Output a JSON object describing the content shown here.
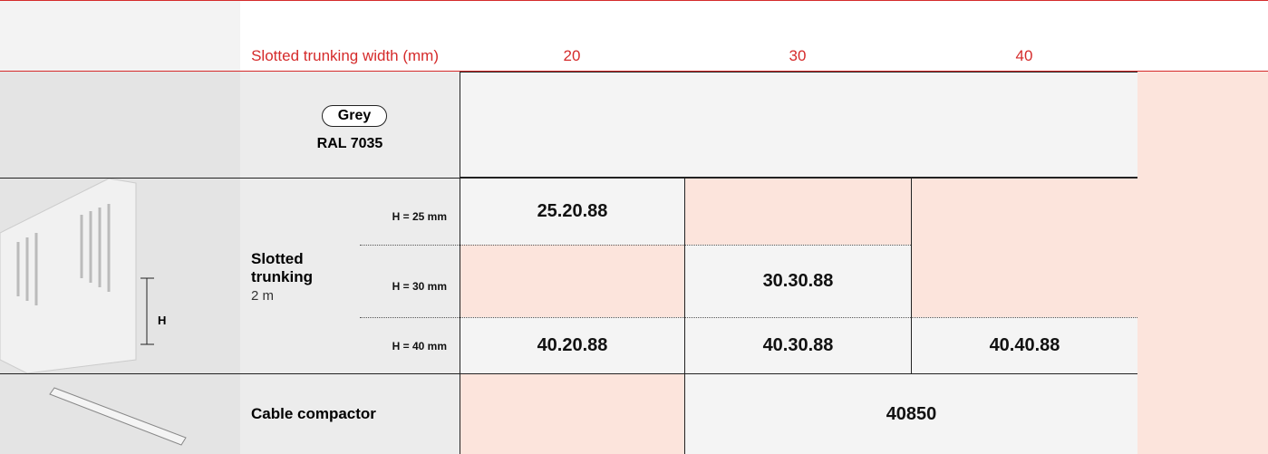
{
  "header": {
    "width_label": "Slotted trunking width (mm)",
    "widths": [
      "20",
      "30",
      "40"
    ]
  },
  "colour": {
    "name": "Grey",
    "ral": "RAL 7035"
  },
  "trunking": {
    "name": "Slotted trunking",
    "length": "2 m",
    "dimension": "H",
    "rows": [
      {
        "height": "H = 25 mm",
        "codes": [
          "25.20.88"
        ]
      },
      {
        "height": "H = 30 mm",
        "codes": [
          "30.30.88"
        ]
      },
      {
        "height": "H = 40 mm",
        "codes": [
          "40.20.88",
          "40.30.88",
          "40.40.88"
        ]
      }
    ]
  },
  "compactor": {
    "name": "Cable compactor",
    "code": "40850"
  }
}
